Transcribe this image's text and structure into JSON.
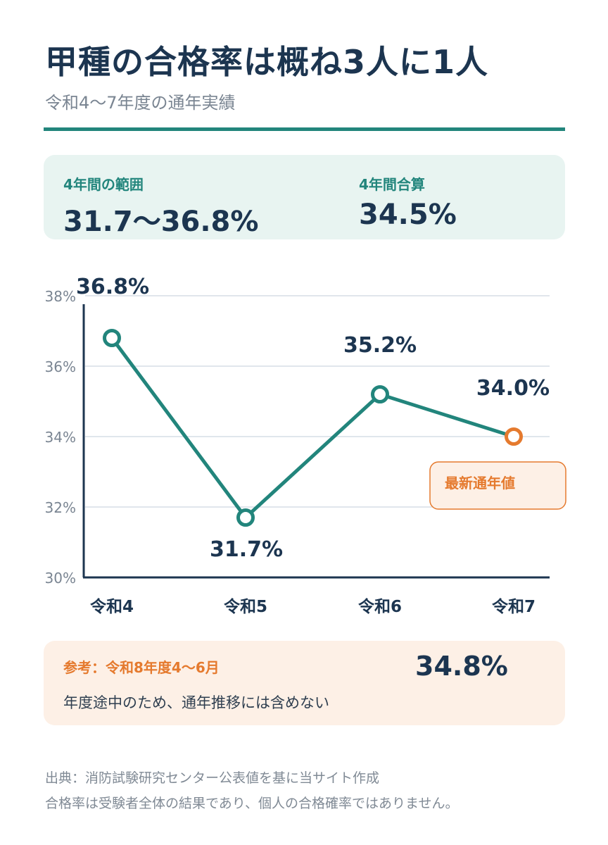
{
  "header": {
    "title": "甲種の合格率は概ね3人に1人",
    "subtitle": "令和4〜7年度の通年実績"
  },
  "summary": {
    "range_label": "4年間の範囲",
    "range_value": "31.7〜36.8%",
    "total_label": "4年間合算",
    "total_value": "34.5%"
  },
  "chart_data": {
    "type": "line",
    "categories": [
      "令和4",
      "令和5",
      "令和6",
      "令和7"
    ],
    "values": [
      36.8,
      31.7,
      35.2,
      34.0
    ],
    "data_labels": [
      "36.8%",
      "31.7%",
      "35.2%",
      "34.0%"
    ],
    "ylim": [
      30,
      38
    ],
    "yticks": [
      30,
      32,
      34,
      36,
      38
    ],
    "ytick_labels": [
      "30%",
      "32%",
      "34%",
      "36%",
      "38%"
    ],
    "grid": true,
    "highlight_index": 3,
    "highlight_label": "最新通年値",
    "line_color": "#22857c",
    "highlight_color": "#e57a2e"
  },
  "reference": {
    "label": "参考：令和8年度4〜6月",
    "value": "34.8%",
    "note": "年度途中のため、通年推移には含めない"
  },
  "footer": {
    "source": "出典：消防試験研究センター公表値を基に当サイト作成",
    "disclaimer": "合格率は受験者全体の結果であり、個人の合格確率ではありません。"
  },
  "colors": {
    "accent": "#22857c",
    "highlight": "#e57a2e",
    "text": "#1c3550"
  }
}
